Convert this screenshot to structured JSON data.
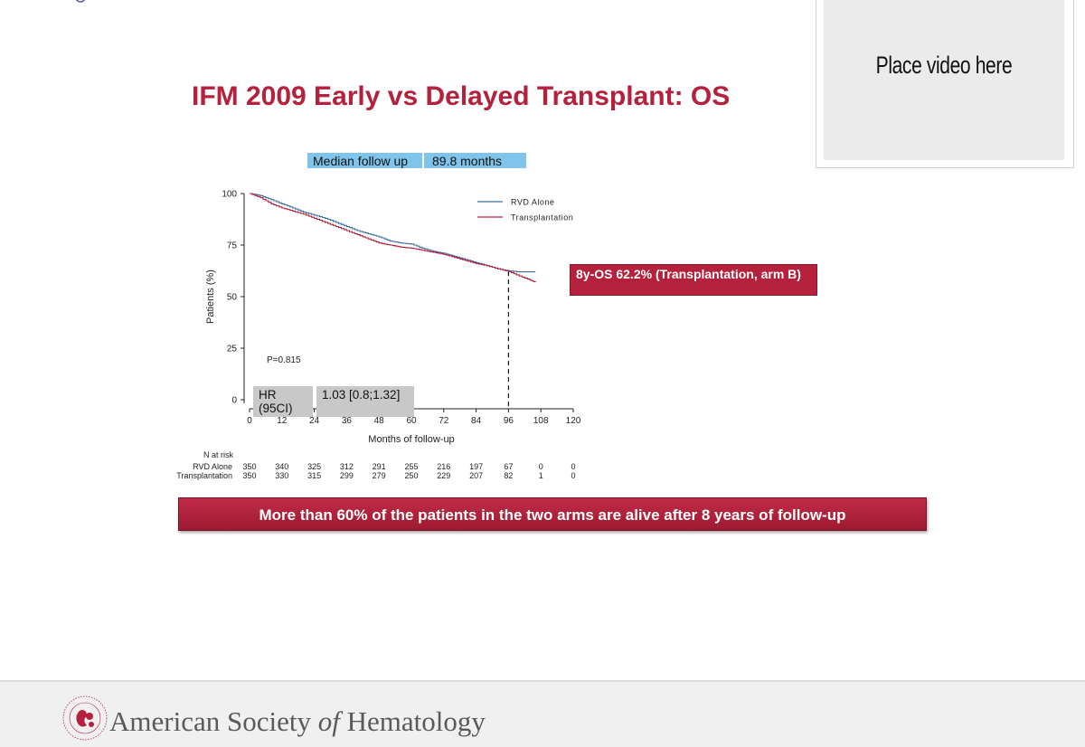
{
  "slide": {
    "title": "IFM 2009 Early vs Delayed Transplant: OS",
    "median_followup": {
      "label": "Median follow up",
      "value": "89.8 months"
    },
    "p_value": "P=0.815",
    "hr": {
      "label": "HR (95CI)",
      "value": "1.03 [0.8;1.32]"
    },
    "callout": "8y-OS 62.2% (Transplantation, arm B)",
    "banner": "More than 60% of the patients in the two arms are alive after 8 years of follow-up"
  },
  "video": {
    "placeholder": "Place video here"
  },
  "footer": {
    "org_prefix": "American Society ",
    "org_of": "of",
    "org_suffix": " Hematology"
  },
  "chart_data": {
    "type": "line",
    "title": "",
    "xlabel": "Months of follow-up",
    "ylabel": "Patients (%)",
    "xlim": [
      0,
      120
    ],
    "ylim": [
      0,
      100
    ],
    "x_ticks": [
      0,
      12,
      24,
      36,
      48,
      60,
      72,
      84,
      96,
      108,
      120
    ],
    "y_ticks": [
      0,
      25,
      50,
      75,
      100
    ],
    "reference_x": 96,
    "legend_position": "top-right",
    "series": [
      {
        "name": "RVD Alone",
        "color": "#3a6f9e",
        "x": [
          0,
          4,
          8,
          12,
          16,
          20,
          24,
          28,
          32,
          36,
          40,
          44,
          48,
          52,
          56,
          60,
          64,
          68,
          72,
          76,
          80,
          84,
          88,
          92,
          96,
          100,
          104,
          106
        ],
        "y": [
          100,
          99,
          97,
          95,
          93,
          91,
          89.5,
          88,
          86,
          84,
          82,
          80.5,
          79,
          77,
          76,
          75.5,
          73.5,
          72,
          71,
          69.5,
          68,
          66.5,
          65,
          63.5,
          62.5,
          62,
          62,
          62
        ]
      },
      {
        "name": "Transplantation",
        "color": "#b5203c",
        "x": [
          0,
          4,
          8,
          12,
          16,
          20,
          24,
          28,
          32,
          36,
          40,
          44,
          48,
          52,
          56,
          60,
          64,
          68,
          72,
          76,
          80,
          84,
          88,
          92,
          96,
          100,
          104,
          106
        ],
        "y": [
          100,
          98,
          95,
          93,
          91.5,
          90,
          88,
          86,
          84,
          82,
          80,
          78,
          76,
          75,
          74,
          73.5,
          72.5,
          71.5,
          70.5,
          69,
          67.5,
          66,
          65,
          63.5,
          62.2,
          60,
          58,
          57
        ]
      }
    ],
    "risk_table": {
      "header": "N at risk",
      "rows": [
        {
          "label": "RVD Alone",
          "values": [
            350,
            340,
            325,
            312,
            291,
            255,
            216,
            197,
            67,
            0,
            0
          ]
        },
        {
          "label": "Transplantation",
          "values": [
            350,
            330,
            315,
            299,
            279,
            250,
            229,
            207,
            82,
            1,
            0
          ]
        }
      ]
    }
  }
}
